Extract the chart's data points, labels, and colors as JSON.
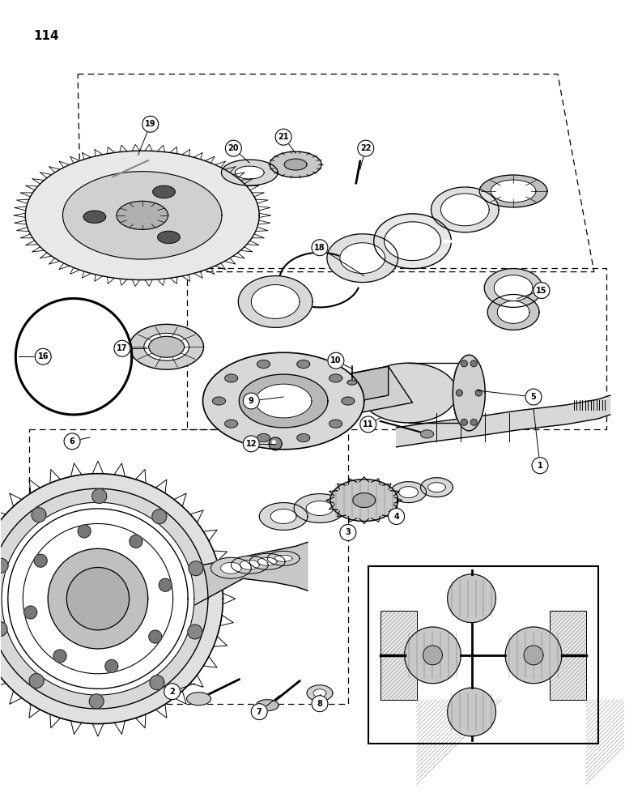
{
  "page_number": "114",
  "bg": "#ffffff",
  "lc": "#000000",
  "fig_w": 7.72,
  "fig_h": 10.0,
  "dpi": 100
}
